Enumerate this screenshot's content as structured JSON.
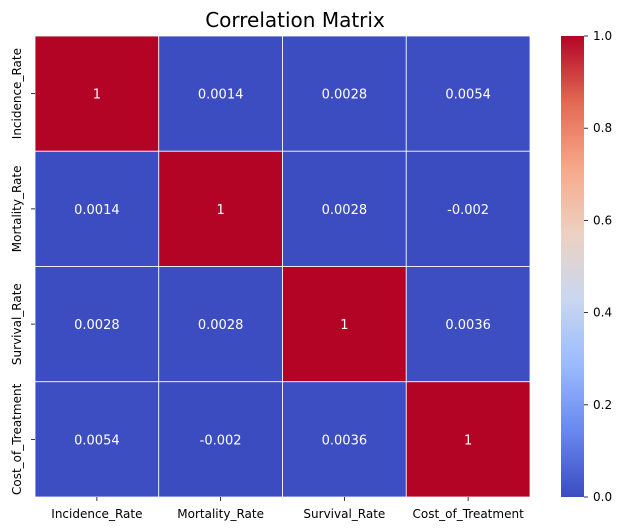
{
  "chart_data": {
    "type": "heatmap",
    "title": "Correlation Matrix",
    "x_categories": [
      "Incidence_Rate",
      "Mortality_Rate",
      "Survival_Rate",
      "Cost_of_Treatment"
    ],
    "y_categories": [
      "Incidence_Rate",
      "Mortality_Rate",
      "Survival_Rate",
      "Cost_of_Treatment"
    ],
    "values": [
      [
        1,
        0.0014,
        0.0028,
        0.0054
      ],
      [
        0.0014,
        1,
        0.0028,
        -0.002
      ],
      [
        0.0028,
        0.0028,
        1,
        0.0036
      ],
      [
        0.0054,
        -0.002,
        0.0036,
        1
      ]
    ],
    "labels": [
      [
        "1",
        "0.0014",
        "0.0028",
        "0.0054"
      ],
      [
        "0.0014",
        "1",
        "0.0028",
        "-0.002"
      ],
      [
        "0.0028",
        "0.0028",
        "1",
        "0.0036"
      ],
      [
        "0.0054",
        "-0.002",
        "0.0036",
        "1"
      ]
    ],
    "colormap": "coolwarm",
    "colorbar": {
      "range": [
        0,
        1
      ],
      "ticks": [
        0.0,
        0.2,
        0.4,
        0.6,
        0.8,
        1.0
      ],
      "tick_labels": [
        "0.0",
        "0.2",
        "0.4",
        "0.6",
        "0.8",
        "1.0"
      ],
      "stops": [
        "#3b4cc0",
        "#6788ee",
        "#9abbff",
        "#c9d7f0",
        "#edd1c2",
        "#f7a889",
        "#e26952",
        "#b40426"
      ]
    },
    "grid_line_color": "#ffffff",
    "legend": "right"
  }
}
